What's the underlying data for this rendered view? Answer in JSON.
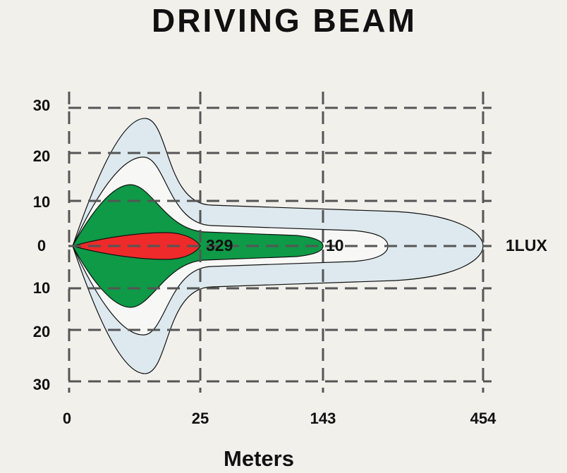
{
  "title": "DRIVING  BEAM",
  "y_labels": [
    "30",
    "20",
    "10",
    "0",
    "10",
    "20",
    "30"
  ],
  "x_labels": [
    "0",
    "25",
    "143",
    "454"
  ],
  "annotations": [
    "329",
    "10",
    "1LUX"
  ],
  "x_axis_title": "Meters"
}
